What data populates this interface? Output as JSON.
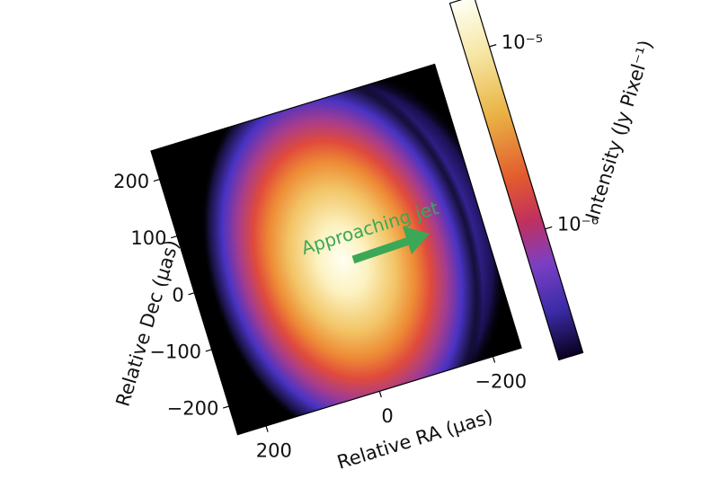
{
  "chart_data": {
    "type": "image",
    "annotation": "Approaching jet",
    "xlabel": "Relative RA (µas)",
    "ylabel": "Relative Dec (µas)",
    "xlim": [
      250,
      -250
    ],
    "ylim": [
      -250,
      250
    ],
    "xticks": [
      200,
      0,
      {
        "value": -200,
        "label": "−200"
      }
    ],
    "yticks": [
      {
        "value": -200,
        "label": "−200"
      },
      {
        "value": -100,
        "label": "−100"
      },
      0,
      100,
      200
    ],
    "colorbar": {
      "label": "Intensity (Jy Pixel⁻¹)",
      "scale": "log",
      "clim": [
        2.1e-07,
        1.9e-05
      ],
      "ticks": [
        {
          "value": 1e-06,
          "label": "10⁻⁶"
        },
        {
          "value": 1e-05,
          "label": "10⁻⁵"
        }
      ]
    }
  }
}
